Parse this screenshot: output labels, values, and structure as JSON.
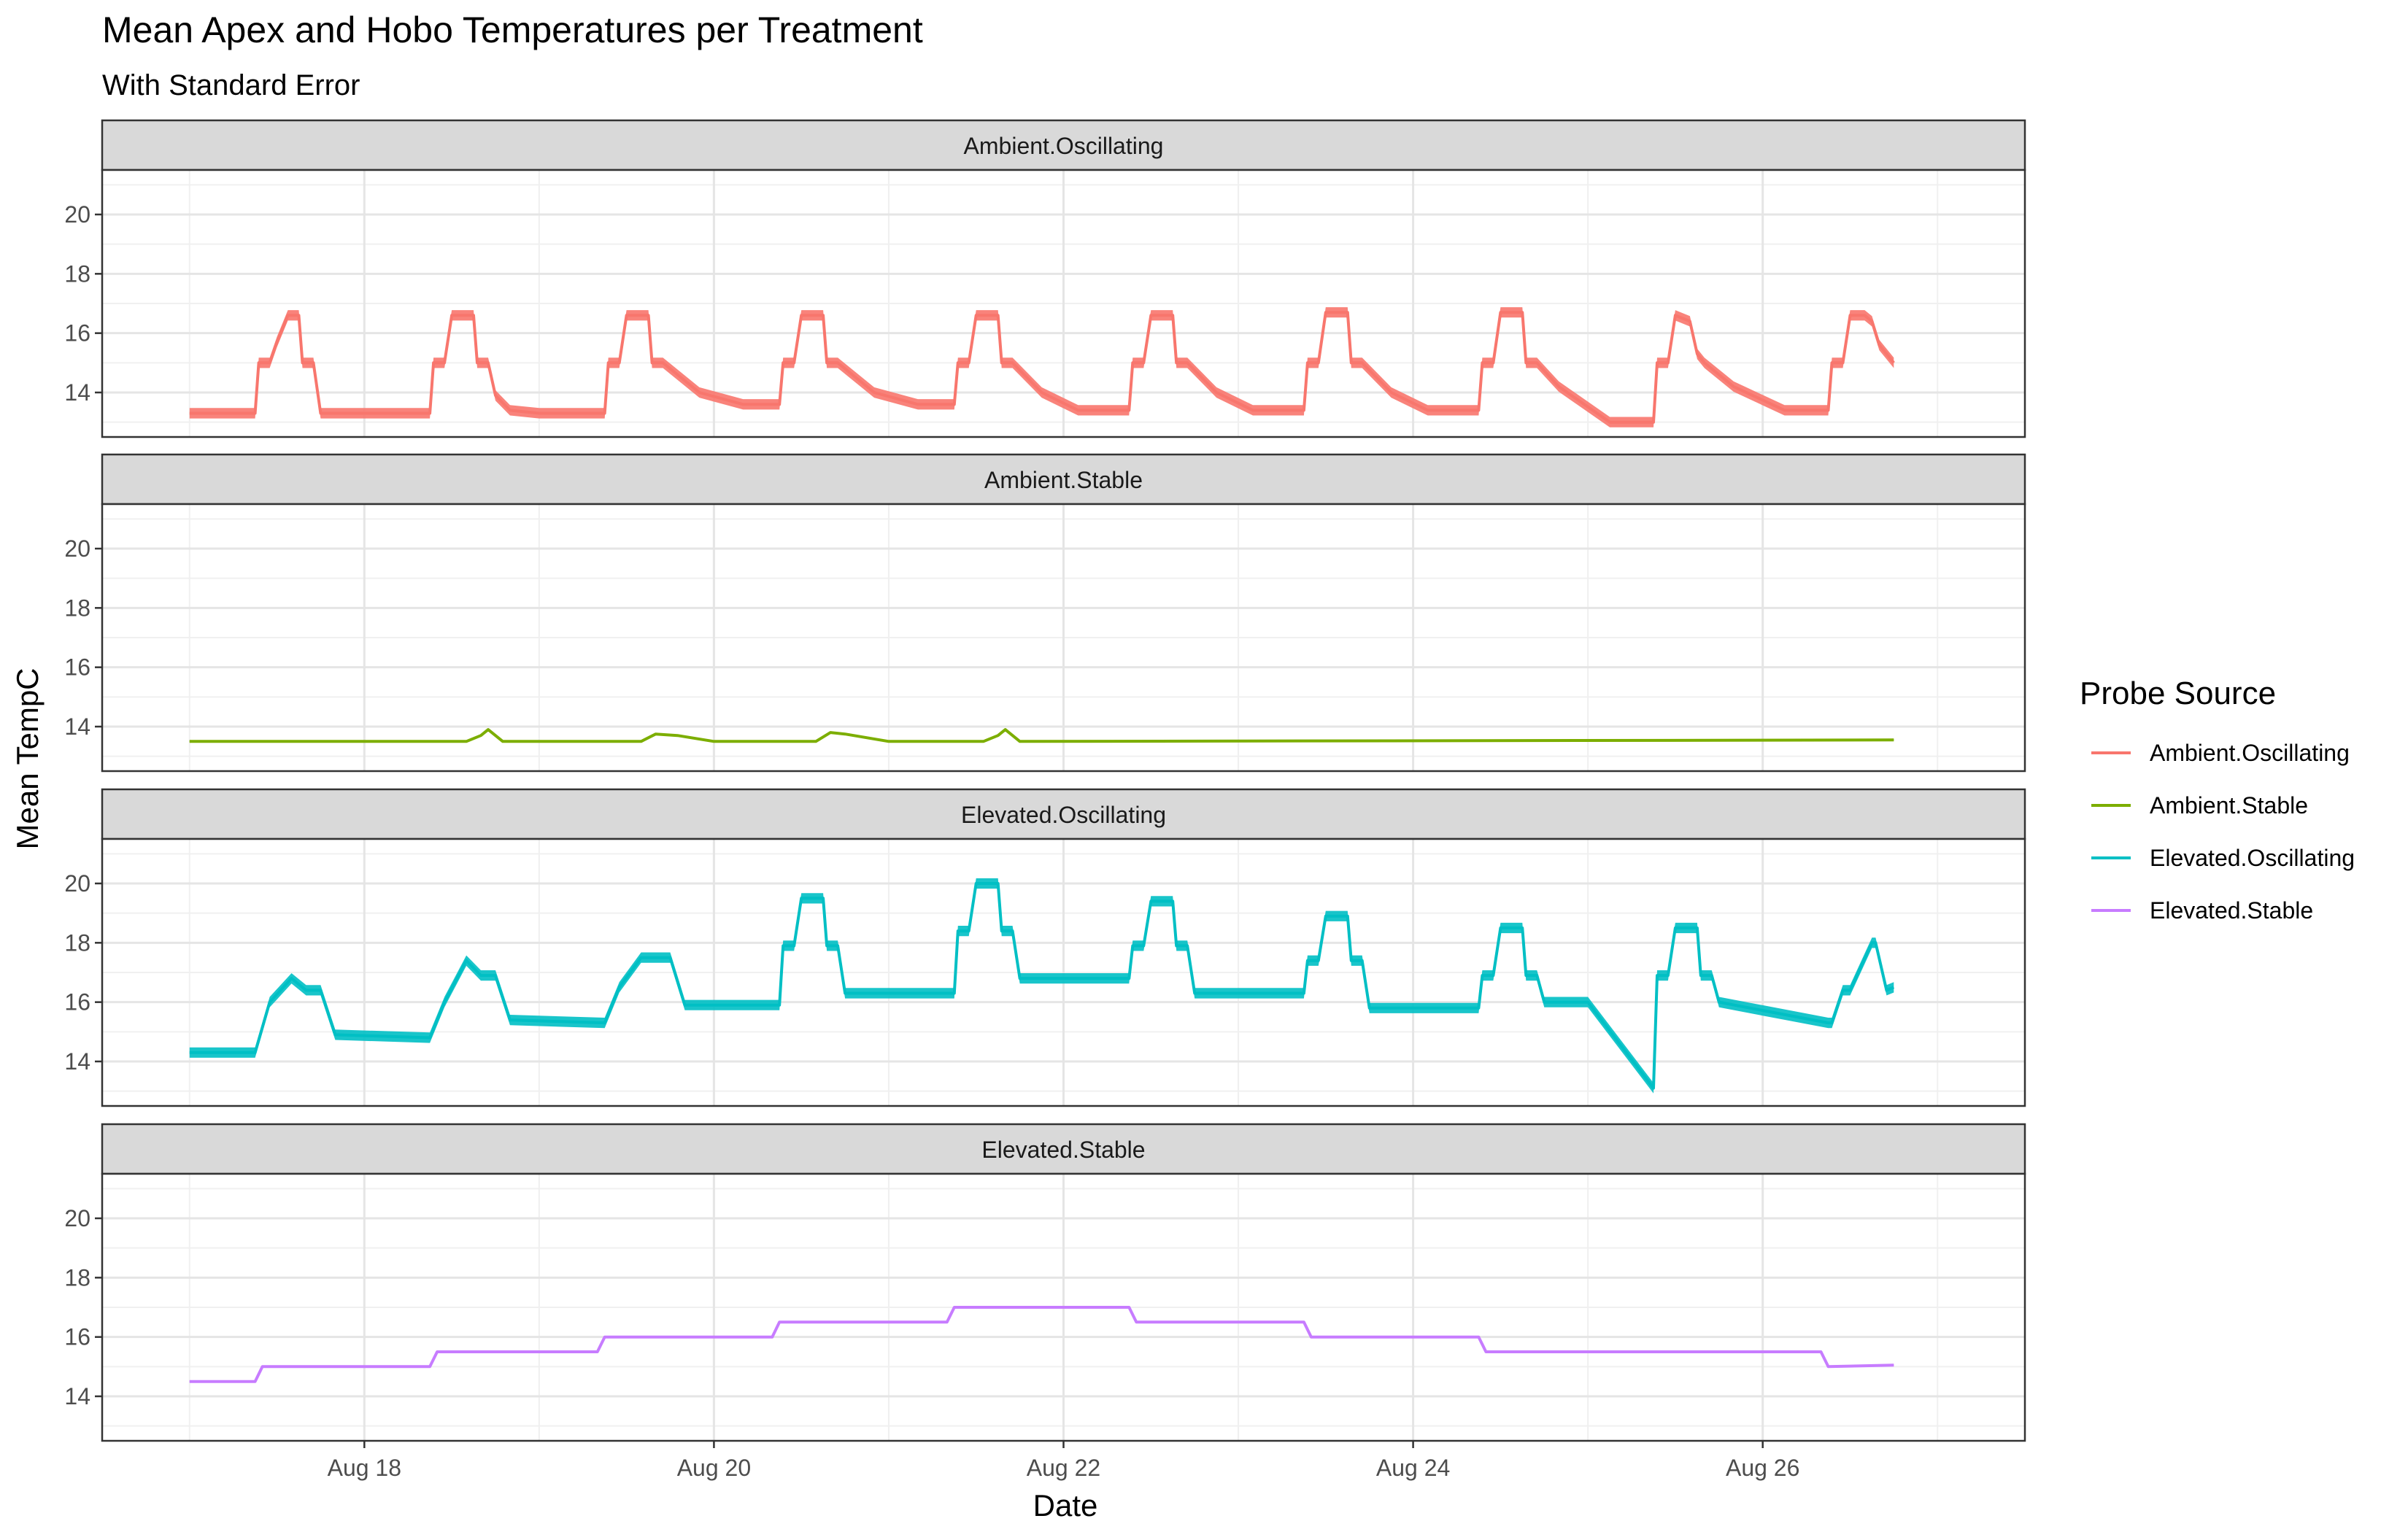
{
  "title": "Mean Apex and Hobo Temperatures per Treatment",
  "subtitle": "With Standard Error",
  "chart_data": {
    "type": "line",
    "xlabel": "Date",
    "ylabel": "Mean TempC",
    "x_range": [
      "2019-08-16T12:00",
      "2019-08-27T12:00"
    ],
    "x_ticks": [
      {
        "value": "2019-08-18",
        "label": "Aug 18"
      },
      {
        "value": "2019-08-20",
        "label": "Aug 20"
      },
      {
        "value": "2019-08-22",
        "label": "Aug 22"
      },
      {
        "value": "2019-08-24",
        "label": "Aug 24"
      },
      {
        "value": "2019-08-26",
        "label": "Aug 26"
      }
    ],
    "ylim": [
      12.5,
      21.5
    ],
    "y_ticks": [
      14,
      16,
      18,
      20
    ],
    "grid": true,
    "legend": {
      "title": "Probe Source",
      "position": "right",
      "items": [
        {
          "label": "Ambient.Oscillating",
          "color": "#F8766D"
        },
        {
          "label": "Ambient.Stable",
          "color": "#7CAE00"
        },
        {
          "label": "Elevated.Oscillating",
          "color": "#00BFC4"
        },
        {
          "label": "Elevated.Stable",
          "color": "#C77CFF"
        }
      ]
    },
    "panels": [
      {
        "strip_label": "Ambient.Oscillating",
        "color": "#F8766D",
        "series": {
          "name": "Ambient.Oscillating",
          "x": [
            "2019-08-17T00:00",
            "2019-08-17T09:00",
            "2019-08-17T09:30",
            "2019-08-17T11:00",
            "2019-08-17T12:00",
            "2019-08-17T13:30",
            "2019-08-17T15:00",
            "2019-08-17T15:30",
            "2019-08-17T17:00",
            "2019-08-17T18:00",
            "2019-08-18T09:00",
            "2019-08-18T09:30",
            "2019-08-18T11:00",
            "2019-08-18T12:00",
            "2019-08-18T15:00",
            "2019-08-18T15:30",
            "2019-08-18T17:00",
            "2019-08-18T18:00",
            "2019-08-18T20:00",
            "2019-08-19T00:00",
            "2019-08-19T09:00",
            "2019-08-19T09:30",
            "2019-08-19T11:00",
            "2019-08-19T12:00",
            "2019-08-19T15:00",
            "2019-08-19T15:30",
            "2019-08-19T17:00",
            "2019-08-19T22:00",
            "2019-08-20T04:00",
            "2019-08-20T09:00",
            "2019-08-20T09:30",
            "2019-08-20T11:00",
            "2019-08-20T12:00",
            "2019-08-20T15:00",
            "2019-08-20T15:30",
            "2019-08-20T17:00",
            "2019-08-20T22:00",
            "2019-08-21T04:00",
            "2019-08-21T09:00",
            "2019-08-21T09:30",
            "2019-08-21T11:00",
            "2019-08-21T12:00",
            "2019-08-21T15:00",
            "2019-08-21T15:30",
            "2019-08-21T17:00",
            "2019-08-21T21:00",
            "2019-08-22T02:00",
            "2019-08-22T09:00",
            "2019-08-22T09:30",
            "2019-08-22T11:00",
            "2019-08-22T12:00",
            "2019-08-22T15:00",
            "2019-08-22T15:30",
            "2019-08-22T17:00",
            "2019-08-22T21:00",
            "2019-08-23T02:00",
            "2019-08-23T09:00",
            "2019-08-23T09:30",
            "2019-08-23T11:00",
            "2019-08-23T12:00",
            "2019-08-23T15:00",
            "2019-08-23T15:30",
            "2019-08-23T17:00",
            "2019-08-23T21:00",
            "2019-08-24T02:00",
            "2019-08-24T09:00",
            "2019-08-24T09:30",
            "2019-08-24T11:00",
            "2019-08-24T12:00",
            "2019-08-24T15:00",
            "2019-08-24T15:30",
            "2019-08-24T17:00",
            "2019-08-24T20:00",
            "2019-08-25T03:00",
            "2019-08-25T09:00",
            "2019-08-25T09:30",
            "2019-08-25T11:00",
            "2019-08-25T12:00",
            "2019-08-25T14:00",
            "2019-08-25T15:00",
            "2019-08-25T16:00",
            "2019-08-25T20:00",
            "2019-08-26T03:00",
            "2019-08-26T09:00",
            "2019-08-26T09:30",
            "2019-08-26T11:00",
            "2019-08-26T12:00",
            "2019-08-26T14:00",
            "2019-08-26T15:00",
            "2019-08-26T16:00",
            "2019-08-26T18:00"
          ],
          "y": [
            13.3,
            13.3,
            15.0,
            15.0,
            15.7,
            16.6,
            16.6,
            15.0,
            15.0,
            13.3,
            13.3,
            15.0,
            15.0,
            16.6,
            16.6,
            15.0,
            15.0,
            13.9,
            13.4,
            13.3,
            13.3,
            15.0,
            15.0,
            16.6,
            16.6,
            15.0,
            15.0,
            14.0,
            13.6,
            13.6,
            15.0,
            15.0,
            16.6,
            16.6,
            15.0,
            15.0,
            14.0,
            13.6,
            13.6,
            15.0,
            15.0,
            16.6,
            16.6,
            15.0,
            15.0,
            14.0,
            13.4,
            13.4,
            15.0,
            15.0,
            16.6,
            16.6,
            15.0,
            15.0,
            14.0,
            13.4,
            13.4,
            15.0,
            15.0,
            16.7,
            16.7,
            15.0,
            15.0,
            14.0,
            13.4,
            13.4,
            15.0,
            15.0,
            16.7,
            16.7,
            15.0,
            15.0,
            14.2,
            13.0,
            13.0,
            15.0,
            15.0,
            16.6,
            16.4,
            15.3,
            15.0,
            14.2,
            13.4,
            13.4,
            15.0,
            15.0,
            16.6,
            16.6,
            16.4,
            15.6,
            15.0
          ]
        },
        "se_width": 0.35
      },
      {
        "strip_label": "Ambient.Stable",
        "color": "#7CAE00",
        "series": {
          "name": "Ambient.Stable",
          "x": [
            "2019-08-17T00:00",
            "2019-08-18T14:00",
            "2019-08-18T16:00",
            "2019-08-18T17:00",
            "2019-08-18T19:00",
            "2019-08-19T14:00",
            "2019-08-19T16:00",
            "2019-08-19T19:00",
            "2019-08-20T00:00",
            "2019-08-20T14:00",
            "2019-08-20T16:00",
            "2019-08-20T18:00",
            "2019-08-21T00:00",
            "2019-08-21T13:00",
            "2019-08-21T15:00",
            "2019-08-21T16:00",
            "2019-08-21T18:00",
            "2019-08-26T18:00"
          ],
          "y": [
            13.5,
            13.5,
            13.7,
            13.9,
            13.5,
            13.5,
            13.75,
            13.7,
            13.5,
            13.5,
            13.8,
            13.75,
            13.5,
            13.5,
            13.7,
            13.9,
            13.5,
            13.55
          ]
        },
        "se_width": 0.06
      },
      {
        "strip_label": "Elevated.Oscillating",
        "color": "#00BFC4",
        "series": {
          "name": "Elevated.Oscillating",
          "x": [
            "2019-08-17T00:00",
            "2019-08-17T09:00",
            "2019-08-17T11:00",
            "2019-08-17T14:00",
            "2019-08-17T16:00",
            "2019-08-17T18:00",
            "2019-08-17T20:00",
            "2019-08-18T09:00",
            "2019-08-18T11:00",
            "2019-08-18T14:00",
            "2019-08-18T16:00",
            "2019-08-18T18:00",
            "2019-08-18T20:00",
            "2019-08-19T09:00",
            "2019-08-19T11:00",
            "2019-08-19T14:00",
            "2019-08-19T16:00",
            "2019-08-19T18:00",
            "2019-08-19T20:00",
            "2019-08-20T09:00",
            "2019-08-20T09:30",
            "2019-08-20T11:00",
            "2019-08-20T12:00",
            "2019-08-20T15:00",
            "2019-08-20T15:30",
            "2019-08-20T17:00",
            "2019-08-20T18:00",
            "2019-08-21T09:00",
            "2019-08-21T09:30",
            "2019-08-21T11:00",
            "2019-08-21T12:00",
            "2019-08-21T15:00",
            "2019-08-21T15:30",
            "2019-08-21T17:00",
            "2019-08-21T18:00",
            "2019-08-22T09:00",
            "2019-08-22T09:30",
            "2019-08-22T11:00",
            "2019-08-22T12:00",
            "2019-08-22T15:00",
            "2019-08-22T15:30",
            "2019-08-22T17:00",
            "2019-08-22T18:00",
            "2019-08-23T09:00",
            "2019-08-23T09:30",
            "2019-08-23T11:00",
            "2019-08-23T12:00",
            "2019-08-23T15:00",
            "2019-08-23T15:30",
            "2019-08-23T17:00",
            "2019-08-23T18:00",
            "2019-08-24T09:00",
            "2019-08-24T09:30",
            "2019-08-24T11:00",
            "2019-08-24T12:00",
            "2019-08-24T15:00",
            "2019-08-24T15:30",
            "2019-08-24T17:00",
            "2019-08-24T18:00",
            "2019-08-25T00:00",
            "2019-08-25T09:00",
            "2019-08-25T09:30",
            "2019-08-25T11:00",
            "2019-08-25T12:00",
            "2019-08-25T15:00",
            "2019-08-25T15:30",
            "2019-08-25T17:00",
            "2019-08-25T18:00",
            "2019-08-26T09:00",
            "2019-08-26T09:30",
            "2019-08-26T11:00",
            "2019-08-26T12:00",
            "2019-08-26T15:00",
            "2019-08-26T15:30",
            "2019-08-26T17:00",
            "2019-08-26T18:00"
          ],
          "y": [
            14.3,
            14.3,
            16.0,
            16.8,
            16.4,
            16.4,
            14.9,
            14.8,
            16.0,
            17.4,
            16.9,
            16.9,
            15.4,
            15.3,
            16.5,
            17.5,
            17.5,
            17.5,
            15.9,
            15.9,
            17.9,
            17.9,
            19.5,
            19.5,
            17.9,
            17.9,
            16.3,
            16.3,
            18.4,
            18.4,
            20.0,
            20.0,
            18.4,
            18.4,
            16.8,
            16.8,
            17.9,
            17.9,
            19.4,
            19.4,
            17.9,
            17.9,
            16.3,
            16.3,
            17.4,
            17.4,
            18.9,
            18.9,
            17.4,
            17.4,
            15.8,
            15.8,
            16.9,
            16.9,
            18.5,
            18.5,
            16.9,
            16.9,
            16.0,
            16.0,
            13.1,
            16.9,
            16.9,
            18.5,
            18.5,
            16.9,
            16.9,
            16.0,
            15.3,
            15.3,
            16.4,
            16.4,
            18.0,
            18.0,
            16.4,
            16.5
          ]
        },
        "se_width": 0.35
      },
      {
        "strip_label": "Elevated.Stable",
        "color": "#C77CFF",
        "series": {
          "name": "Elevated.Stable",
          "x": [
            "2019-08-17T00:00",
            "2019-08-17T09:00",
            "2019-08-17T10:00",
            "2019-08-18T09:00",
            "2019-08-18T10:00",
            "2019-08-19T08:00",
            "2019-08-19T09:00",
            "2019-08-20T08:00",
            "2019-08-20T09:00",
            "2019-08-21T08:00",
            "2019-08-21T09:00",
            "2019-08-22T09:00",
            "2019-08-22T10:00",
            "2019-08-23T09:00",
            "2019-08-23T10:00",
            "2019-08-24T09:00",
            "2019-08-24T10:00",
            "2019-08-25T09:00",
            "2019-08-26T08:00",
            "2019-08-26T09:00",
            "2019-08-26T18:00"
          ],
          "y": [
            14.5,
            14.5,
            15.0,
            15.0,
            15.5,
            15.5,
            16.0,
            16.0,
            16.5,
            16.5,
            17.0,
            17.0,
            16.5,
            16.5,
            16.0,
            16.0,
            15.5,
            15.5,
            15.5,
            15.0,
            15.05
          ]
        },
        "se_width": 0.07
      }
    ]
  }
}
